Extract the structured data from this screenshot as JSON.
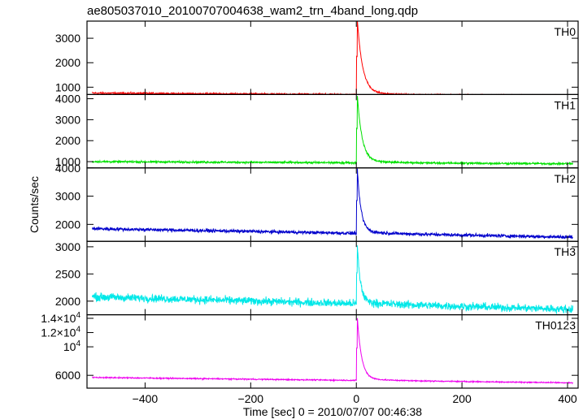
{
  "chart_data": {
    "type": "line",
    "title": "ae805037010_20100707004638_wam2_trn_4band_long.qdp",
    "xlabel": "Time [sec] 0 = 2010/07/07 00:46:38",
    "ylabel": "Counts/sec",
    "xlim": [
      -510,
      420
    ],
    "x_ticks": [
      {
        "value": -400,
        "label": "−400"
      },
      {
        "value": -200,
        "label": "−200"
      },
      {
        "value": 0,
        "label": "0"
      },
      {
        "value": 200,
        "label": "200"
      },
      {
        "value": 400,
        "label": "400"
      }
    ],
    "grid": false,
    "panels": [
      {
        "name": "TH0",
        "color": "#ff0000",
        "ylim": [
          700,
          3700
        ],
        "y_ticks": [
          {
            "value": 1000,
            "label": "1000"
          },
          {
            "value": 2000,
            "label": "2000"
          },
          {
            "value": 3000,
            "label": "3000"
          }
        ],
        "baseline_start": 760,
        "baseline_end": 640,
        "noise": 25,
        "peak": 3700,
        "peak_time": 2,
        "decay": 10
      },
      {
        "name": "TH1",
        "color": "#00e000",
        "ylim": [
          700,
          4200
        ],
        "y_ticks": [
          {
            "value": 1000,
            "label": "1000"
          },
          {
            "value": 2000,
            "label": "2000"
          },
          {
            "value": 3000,
            "label": "3000"
          },
          {
            "value": 4000,
            "label": "4000"
          }
        ],
        "baseline_start": 1000,
        "baseline_end": 900,
        "noise": 35,
        "peak": 4100,
        "peak_time": 2,
        "decay": 9
      },
      {
        "name": "TH2",
        "color": "#0000cc",
        "ylim": [
          1400,
          4000
        ],
        "y_ticks": [
          {
            "value": 2000,
            "label": "2000"
          },
          {
            "value": 3000,
            "label": "3000"
          },
          {
            "value": 4000,
            "label": "4000"
          }
        ],
        "baseline_start": 1850,
        "baseline_end": 1550,
        "noise": 45,
        "peak": 4000,
        "peak_time": 2,
        "decay": 7
      },
      {
        "name": "TH3",
        "color": "#00e8e8",
        "ylim": [
          1750,
          3100
        ],
        "y_ticks": [
          {
            "value": 2000,
            "label": "2000"
          },
          {
            "value": 2500,
            "label": "2500"
          },
          {
            "value": 3000,
            "label": "3000"
          }
        ],
        "baseline_start": 2080,
        "baseline_end": 1850,
        "noise": 55,
        "peak": 3100,
        "peak_time": 2,
        "decay": 6
      },
      {
        "name": "TH0123",
        "color": "#ee00ee",
        "ylim": [
          4200,
          14500
        ],
        "y_ticks": [
          {
            "value": 6000,
            "label": "6000"
          },
          {
            "value": 10000,
            "label": "10",
            "exp": "4",
            "mantissa": ""
          },
          {
            "value": 12000,
            "label": "1.2×10",
            "exp": "4"
          },
          {
            "value": 14000,
            "label": "1.4×10",
            "exp": "4"
          }
        ],
        "baseline_start": 5700,
        "baseline_end": 4950,
        "noise": 60,
        "peak": 14200,
        "peak_time": 2,
        "decay": 8
      }
    ]
  }
}
